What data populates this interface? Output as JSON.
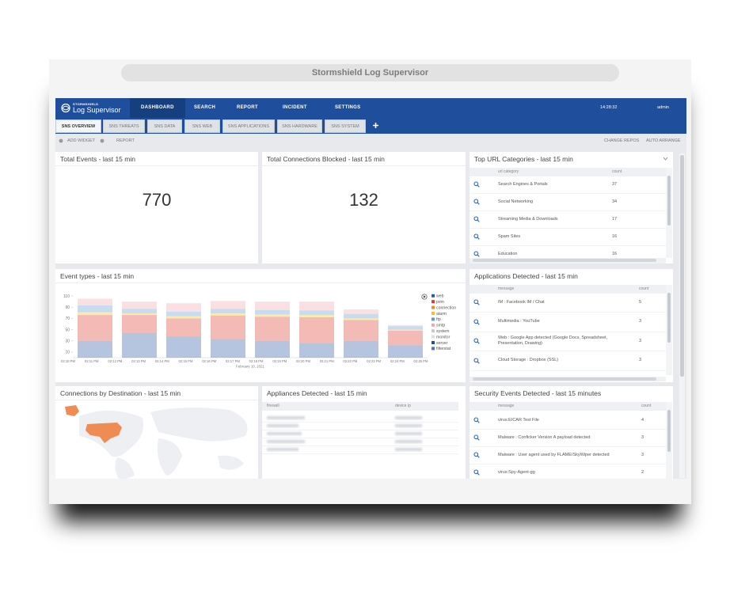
{
  "window_title": "Stormshield Log Supervisor",
  "nav": {
    "brand_small": "STORMSHIELD",
    "brand": "Log Supervisor",
    "items": [
      "DASHBOARD",
      "SEARCH",
      "REPORT",
      "INCIDENT",
      "SETTINGS"
    ],
    "time": "14:28:32",
    "user": "admin"
  },
  "tabs": [
    "SNS OVERVIEW",
    "SNS THREATS",
    "SNS DATA",
    "SNS WEB",
    "SNS APPLICATIONS",
    "SNS HARDWARE",
    "SNS SYSTEM"
  ],
  "toolbar": {
    "left": [
      "ADD WIDGET",
      "REPORT"
    ],
    "right": [
      "CHANGE REPOS",
      "AUTO ARRANGE"
    ]
  },
  "widgets": {
    "total_events": {
      "title": "Total Events - last 15 min",
      "value": 770
    },
    "total_blocked": {
      "title": "Total Connections Blocked - last 15 min",
      "value": 132
    },
    "top_url": {
      "title": "Top URL Categories - last 15 min",
      "columns": [
        "url category",
        "count"
      ],
      "rows": [
        [
          "Search Engines & Portals",
          37
        ],
        [
          "Social Networking",
          34
        ],
        [
          "Streaming Media & Downloads",
          17
        ],
        [
          "Spam Sites",
          16
        ],
        [
          "Education",
          16
        ]
      ]
    },
    "event_types": {
      "title": "Event types - last 15 min",
      "chart_data": {
        "type": "stacked-bar",
        "xticks": [
          "02:10 PM",
          "02:11 PM",
          "02:12 PM",
          "02:13 PM",
          "02:14 PM",
          "02:15 PM",
          "02:16 PM",
          "02:17 PM",
          "02:18 PM",
          "02:19 PM",
          "02:20 PM",
          "02:21 PM",
          "02:22 PM",
          "02:23 PM",
          "02:24 PM",
          "02:25 PM"
        ],
        "xlabel": "February 10, 2021",
        "ylim": [
          0,
          115
        ],
        "yticks": [
          10,
          30,
          50,
          70,
          90,
          110
        ],
        "series": [
          {
            "name": "web",
            "color": "#2b5aa6",
            "values": [
              30,
              44,
              38,
              33,
              30,
              26,
              30,
              22
            ]
          },
          {
            "name": "pvm",
            "color": "#e03a2f",
            "values": [
              46,
              32,
              32,
              42,
              43,
              46,
              37,
              26
            ]
          },
          {
            "name": "connection",
            "color": "#f08a24",
            "values": [
              0,
              0,
              0,
              0,
              0,
              0,
              0,
              0
            ]
          },
          {
            "name": "alarm",
            "color": "#f2c318",
            "values": [
              5,
              3,
              4,
              4,
              4,
              4,
              3,
              2
            ]
          },
          {
            "name": "ftp",
            "color": "#5b9bd5",
            "values": [
              12,
              8,
              8,
              8,
              8,
              8,
              8,
              6
            ]
          },
          {
            "name": "smtp",
            "color": "#f4a6b0",
            "values": [
              12,
              13,
              15,
              14,
              15,
              16,
              8,
              2
            ]
          },
          {
            "name": "system",
            "color": "#c9c9c9",
            "values": [
              0,
              0,
              0,
              0,
              0,
              0,
              0,
              0
            ]
          },
          {
            "name": "monitor",
            "color": "#dddddd",
            "values": [
              0,
              0,
              0,
              0,
              0,
              0,
              0,
              0
            ]
          },
          {
            "name": "server",
            "color": "#1f4f9c",
            "values": [
              0,
              0,
              0,
              0,
              0,
              0,
              0,
              0
            ]
          },
          {
            "name": "filterstat",
            "color": "#5470c6",
            "values": [
              0,
              0,
              0,
              0,
              0,
              0,
              0,
              0
            ]
          }
        ]
      }
    },
    "apps": {
      "title": "Applications Detected - last 15 min",
      "columns": [
        "message",
        "count"
      ],
      "rows": [
        [
          "IM : Facebook IM / Chat",
          5
        ],
        [
          "Multimedia : YouTube",
          3
        ],
        [
          "Web : Google App detected (Google Docs, Spreadsheet, Presentation, Drawing)",
          3
        ],
        [
          "Cloud Storage : Dropbox (SSL)",
          3
        ]
      ]
    },
    "connections": {
      "title": "Connections by Destination - last 15 min"
    },
    "appliances": {
      "title": "Appliances Detected - last 15 min",
      "columns": [
        "firewall",
        "device ip"
      ]
    },
    "security": {
      "title": "Security Events Detected - last 15 minutes",
      "columns": [
        "message",
        "count"
      ],
      "rows": [
        [
          "virus:EICAR Test File",
          4
        ],
        [
          "Malware : Conficker Version A payload detected",
          3
        ],
        [
          "Malware : User agent used by FLAME/SkyWiper detected",
          3
        ],
        [
          "virus:Spy-Agent-gg",
          2
        ]
      ]
    }
  }
}
